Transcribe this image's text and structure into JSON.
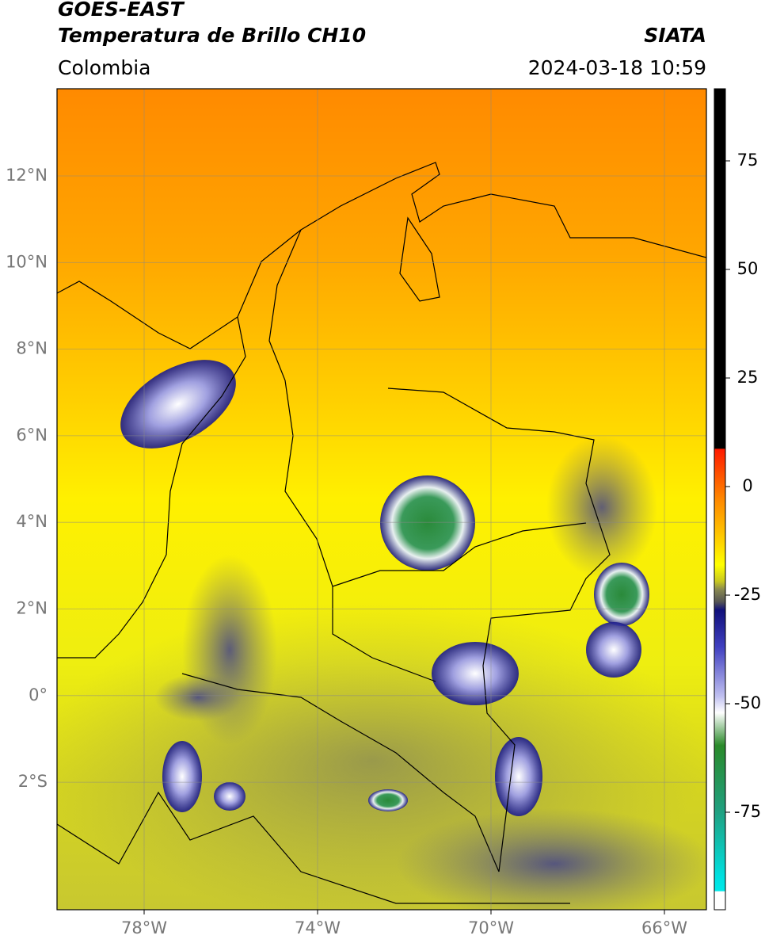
{
  "header": {
    "title": "GOES-EAST",
    "subtitle": "Temperatura de Brillo CH10",
    "source": "SIATA",
    "region": "Colombia",
    "datetime": "2024-03-18 10:59"
  },
  "map": {
    "lat_labels": [
      "12°N",
      "10°N",
      "8°N",
      "6°N",
      "4°N",
      "2°N",
      "0°",
      "2°S"
    ],
    "lon_labels": [
      "78°W",
      "74°W",
      "70°W",
      "66°W"
    ]
  },
  "colorbar": {
    "ticks": [
      75,
      50,
      25,
      0,
      -25,
      -50,
      -75
    ]
  }
}
